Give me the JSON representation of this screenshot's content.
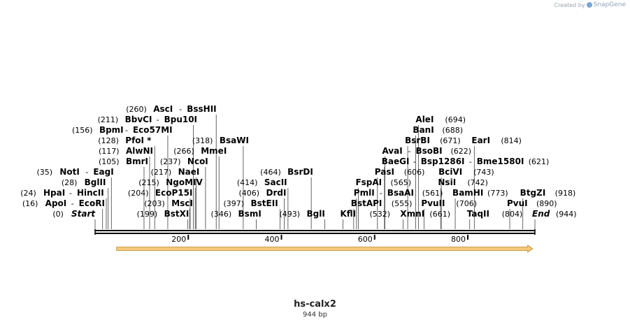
{
  "credit": {
    "prefix": "Created by",
    "brand": "SnapGene"
  },
  "sequence": {
    "name": "hs-calx2",
    "length_label": "944 bp",
    "length": 944
  },
  "ticks": [
    {
      "value": 200,
      "label": "200"
    },
    {
      "value": 400,
      "label": "400"
    },
    {
      "value": 600,
      "label": "600"
    },
    {
      "value": 800,
      "label": "800"
    }
  ],
  "feature": {
    "start": 46,
    "end": 939,
    "direction": "forward",
    "color": "#f5c87a"
  },
  "sites": [
    {
      "pos": 0,
      "line": "(0)",
      "names": [
        "Start"
      ],
      "italic": true,
      "side": "left"
    },
    {
      "pos": 16,
      "line": "(16)",
      "names": [
        "ApoI",
        "EcoRI"
      ],
      "side": "left"
    },
    {
      "pos": 24,
      "line": "(24)",
      "names": [
        "HpaI",
        "HincII"
      ],
      "side": "left"
    },
    {
      "pos": 28,
      "line": "(28)",
      "names": [
        "BglII"
      ],
      "side": "left"
    },
    {
      "pos": 35,
      "line": "(35)",
      "names": [
        "NotI",
        "EagI"
      ],
      "side": "left"
    },
    {
      "pos": 105,
      "line": "(105)",
      "names": [
        "BmrI"
      ],
      "side": "left"
    },
    {
      "pos": 117,
      "line": "(117)",
      "names": [
        "AlwNI"
      ],
      "side": "left"
    },
    {
      "pos": 128,
      "line": "(128)",
      "names": [
        "PfoI *"
      ],
      "side": "left"
    },
    {
      "pos": 156,
      "line": "(156)",
      "names": [
        "BpmI",
        "Eco57MI"
      ],
      "side": "left"
    },
    {
      "pos": 199,
      "line": "(199)",
      "names": [
        "BstXI"
      ],
      "side": "left"
    },
    {
      "pos": 203,
      "line": "(203)",
      "names": [
        "MscI"
      ],
      "side": "left"
    },
    {
      "pos": 204,
      "line": "(204)",
      "names": [
        "EcoP15I"
      ],
      "side": "left"
    },
    {
      "pos": 211,
      "line": "(211)",
      "names": [
        "BbvCI",
        "Bpu10I"
      ],
      "side": "left"
    },
    {
      "pos": 215,
      "line": "(215)",
      "names": [
        "NgoMIV"
      ],
      "side": "left"
    },
    {
      "pos": 217,
      "line": "(217)",
      "names": [
        "NaeI"
      ],
      "side": "left"
    },
    {
      "pos": 237,
      "line": "(237)",
      "names": [
        "NcoI"
      ],
      "side": "left"
    },
    {
      "pos": 260,
      "line": "(260)",
      "names": [
        "AscI",
        "BssHII"
      ],
      "side": "left"
    },
    {
      "pos": 266,
      "line": "(266)",
      "names": [
        "MmeI"
      ],
      "side": "left"
    },
    {
      "pos": 318,
      "line": "(318)",
      "names": [
        "BsaWI"
      ],
      "side": "left"
    },
    {
      "pos": 346,
      "line": "(346)",
      "names": [
        "BsmI"
      ],
      "side": "left"
    },
    {
      "pos": 397,
      "line": "(397)",
      "names": [
        "BstEII"
      ],
      "side": "left"
    },
    {
      "pos": 406,
      "line": "(406)",
      "names": [
        "DrdI"
      ],
      "side": "left"
    },
    {
      "pos": 414,
      "line": "(414)",
      "names": [
        "SacII"
      ],
      "side": "left"
    },
    {
      "pos": 464,
      "line": "(464)",
      "names": [
        "BsrDI"
      ],
      "side": "left"
    },
    {
      "pos": 493,
      "line": "(493)",
      "names": [
        "BglI"
      ],
      "side": "left"
    },
    {
      "pos": 532,
      "line": "(532)",
      "names": [
        "KflI"
      ],
      "side": "right"
    },
    {
      "pos": 555,
      "line": "(555)",
      "names": [
        "BstAPI"
      ],
      "side": "right"
    },
    {
      "pos": 561,
      "line": "(561)",
      "names": [
        "PmlI",
        "BsaAI"
      ],
      "side": "right"
    },
    {
      "pos": 565,
      "line": "(565)",
      "names": [
        "FspAI"
      ],
      "side": "right"
    },
    {
      "pos": 606,
      "line": "(606)",
      "names": [
        "PasI"
      ],
      "side": "right"
    },
    {
      "pos": 621,
      "line": "(621)",
      "names": [
        "BaeGI",
        "Bsp1286I",
        "Bme1580I"
      ],
      "side": "right"
    },
    {
      "pos": 622,
      "line": "(622)",
      "names": [
        "AvaI",
        "BsoBI"
      ],
      "side": "right"
    },
    {
      "pos": 661,
      "line": "(661)",
      "names": [
        "XmnI"
      ],
      "side": "right"
    },
    {
      "pos": 671,
      "line": "(671)",
      "names": [
        "BsrBI"
      ],
      "side": "right"
    },
    {
      "pos": 688,
      "line": "(688)",
      "names": [
        "BanI"
      ],
      "side": "right"
    },
    {
      "pos": 694,
      "line": "(694)",
      "names": [
        "AleI"
      ],
      "side": "right"
    },
    {
      "pos": 706,
      "line": "(706)",
      "names": [
        "PvuII"
      ],
      "side": "right"
    },
    {
      "pos": 742,
      "line": "(742)",
      "names": [
        "NsiI"
      ],
      "side": "right"
    },
    {
      "pos": 743,
      "line": "(743)",
      "names": [
        "BciVI"
      ],
      "side": "right"
    },
    {
      "pos": 773,
      "line": "(773)",
      "names": [
        "BamHI"
      ],
      "side": "right"
    },
    {
      "pos": 804,
      "line": "(804)",
      "names": [
        "TaqII"
      ],
      "side": "right"
    },
    {
      "pos": 814,
      "line": "(814)",
      "names": [
        "EarI"
      ],
      "side": "right"
    },
    {
      "pos": 890,
      "line": "(890)",
      "names": [
        "PvuI"
      ],
      "side": "right"
    },
    {
      "pos": 918,
      "line": "(918)",
      "names": [
        "BtgZI"
      ],
      "side": "right"
    },
    {
      "pos": 944,
      "line": "(944)",
      "names": [
        "End"
      ],
      "italic": true,
      "side": "right"
    }
  ]
}
